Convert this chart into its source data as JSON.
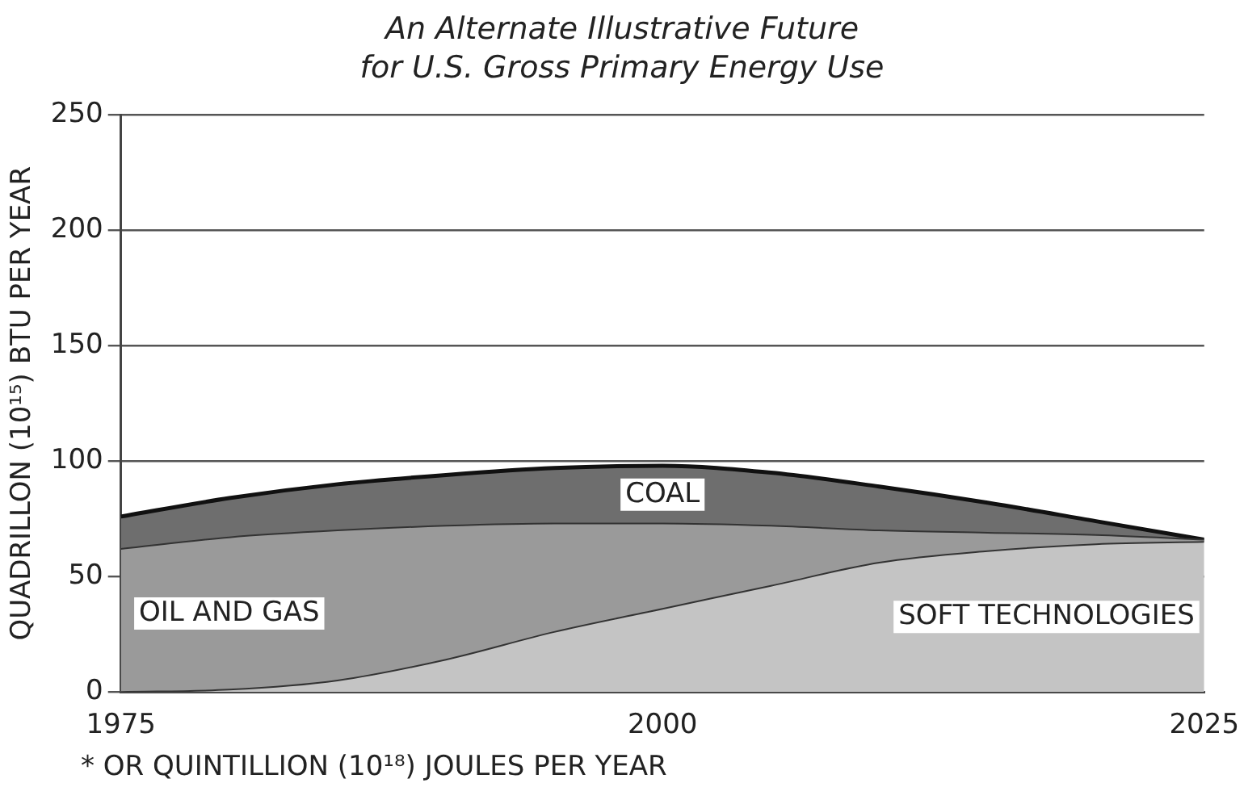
{
  "chart_data": {
    "type": "area",
    "title": "An Alternate Illustrative Future\nfor U.S. Gross Primary Energy Use",
    "ylabel": "QUADRILLON (10¹⁵) BTU PER YEAR",
    "annotations": [
      "* OR QUINTILLION (10¹⁸) JOULES PER YEAR"
    ],
    "x": [
      1975,
      1980,
      1985,
      1990,
      1995,
      2000,
      2005,
      2010,
      2015,
      2020,
      2025
    ],
    "xlim": [
      1975,
      2025
    ],
    "xticks": [
      1975,
      2000,
      2025
    ],
    "ylim": [
      0,
      250
    ],
    "yticks": [
      0,
      50,
      100,
      150,
      200,
      250
    ],
    "stacked": true,
    "grid": "y",
    "legend": false,
    "series": [
      {
        "name": "SOFT TECHNOLOGIES",
        "color": "#c4c4c4",
        "values": [
          0,
          1,
          5,
          14,
          26,
          36,
          46,
          56,
          61,
          64,
          65
        ]
      },
      {
        "name": "OIL AND GAS",
        "color": "#9a9a9a",
        "values": [
          62,
          66,
          65,
          58,
          47,
          37,
          26,
          14,
          8,
          4,
          1
        ]
      },
      {
        "name": "COAL",
        "color": "#6e6e6e",
        "values": [
          14,
          17,
          20,
          22,
          24,
          25,
          23,
          19,
          13,
          6,
          0
        ]
      }
    ]
  }
}
